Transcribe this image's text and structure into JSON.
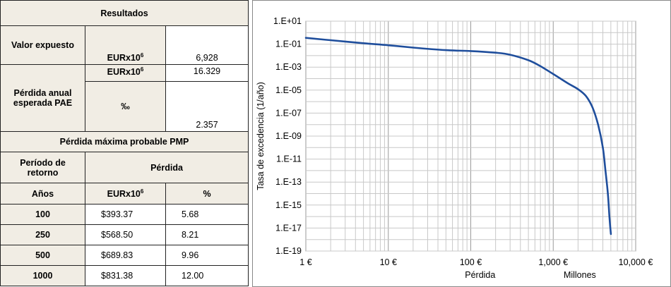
{
  "results_table": {
    "title": "Resultados",
    "valor_expuesto_label": "Valor expuesto",
    "unit_eur": "EURx10",
    "unit_exp": "6",
    "valor_expuesto_value": "6,928",
    "pae_label": "Pérdida anual esperada PAE",
    "pae_eur_value": "16.329",
    "pae_permil_unit": "‰",
    "pae_permil_value": "2.357",
    "pmp_title": "Pérdida máxima probable PMP",
    "periodo_label": "Período de retorno",
    "perdida_label": "Pérdida",
    "anos_label": "Años",
    "pct_label": "%",
    "rows": [
      {
        "years": "100",
        "loss": "$393.37",
        "pct": "5.68"
      },
      {
        "years": "250",
        "loss": "$568.50",
        "pct": "8.21"
      },
      {
        "years": "500",
        "loss": "$689.83",
        "pct": "9.96"
      },
      {
        "years": "1000",
        "loss": "$831.38",
        "pct": "12.00"
      }
    ]
  },
  "chart_data": {
    "type": "line",
    "xlabel": "Pérdida",
    "x_unit_note": "Millones",
    "ylabel": "Tasa de excedencia (1/año)",
    "x_scale": "log",
    "y_scale": "log",
    "xlim": [
      1,
      10000
    ],
    "ylim": [
      1e-19,
      10
    ],
    "x_tick_labels": [
      "1 €",
      "10 €",
      "100 €",
      "1,000 €",
      "10,000 €"
    ],
    "y_tick_labels": [
      "1.E+01",
      "1.E-01",
      "1.E-03",
      "1.E-05",
      "1.E-07",
      "1.E-09",
      "1.E-11",
      "1.E-13",
      "1.E-15",
      "1.E-17",
      "1.E-19"
    ],
    "grid": true,
    "line_color": "#1f4e9c",
    "series": [
      {
        "x": [
          1,
          2,
          5,
          10,
          20,
          50,
          100,
          200,
          300,
          500,
          700,
          1000,
          1500,
          2000,
          2500,
          3000,
          3500,
          4000,
          4300,
          4600,
          4800,
          5000
        ],
        "y": [
          0.35,
          0.22,
          0.12,
          0.08,
          0.05,
          0.03,
          0.025,
          0.018,
          0.012,
          0.004,
          0.0012,
          0.00025,
          4e-05,
          1.2e-05,
          3e-06,
          3e-07,
          1e-08,
          1e-10,
          1e-12,
          1e-14,
          1e-16,
          3e-18
        ]
      }
    ]
  }
}
